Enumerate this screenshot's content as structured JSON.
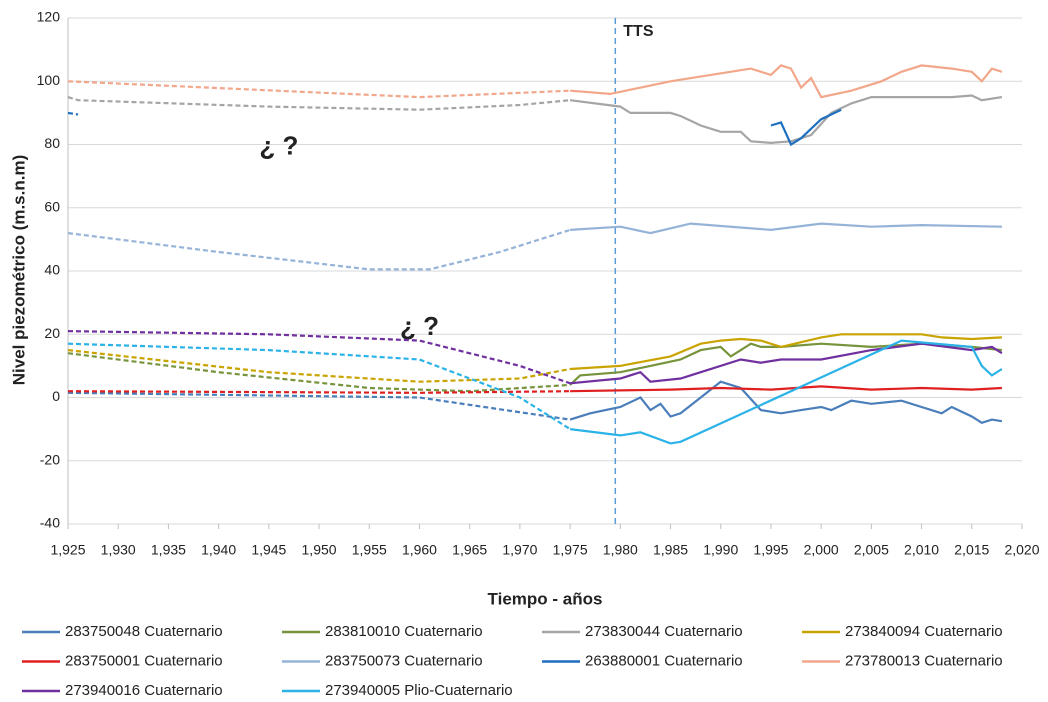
{
  "chart_data": {
    "type": "line",
    "x_label": "Tiempo - años",
    "y_label": "Nivel piezométrico (m.s.n.m)",
    "xlim": [
      1925,
      2020
    ],
    "xticks": [
      {
        "value": 1925,
        "label": "1,925"
      },
      {
        "value": 1930,
        "label": "1,930"
      },
      {
        "value": 1935,
        "label": "1,935"
      },
      {
        "value": 1940,
        "label": "1,940"
      },
      {
        "value": 1945,
        "label": "1,945"
      },
      {
        "value": 1950,
        "label": "1,950"
      },
      {
        "value": 1955,
        "label": "1,955"
      },
      {
        "value": 1960,
        "label": "1,960"
      },
      {
        "value": 1965,
        "label": "1,965"
      },
      {
        "value": 1970,
        "label": "1,970"
      },
      {
        "value": 1975,
        "label": "1,975"
      },
      {
        "value": 1980,
        "label": "1,980"
      },
      {
        "value": 1985,
        "label": "1,985"
      },
      {
        "value": 1990,
        "label": "1,990"
      },
      {
        "value": 1995,
        "label": "1,995"
      },
      {
        "value": 2000,
        "label": "2,000"
      },
      {
        "value": 2005,
        "label": "2,005"
      },
      {
        "value": 2010,
        "label": "2,010"
      },
      {
        "value": 2015,
        "label": "2,015"
      },
      {
        "value": 2020,
        "label": "2,020"
      }
    ],
    "ylim": [
      -40,
      120
    ],
    "yticks": [
      -40,
      -20,
      0,
      20,
      40,
      60,
      80,
      100,
      120
    ],
    "grid": true,
    "dashed_before": 1975,
    "vline": {
      "x": 1979.5,
      "label": "TTS",
      "color": "#5b9bd5"
    },
    "annotations": [
      {
        "text": "¿ ?",
        "x": 1946,
        "y": 79
      },
      {
        "text": "¿ ?",
        "x": 1960,
        "y": 22
      }
    ],
    "series": [
      {
        "name": "283750048 Cuaternario",
        "color": "#4a7ebb",
        "x": [
          1925,
          1960,
          1975,
          1977,
          1980,
          1982,
          1983,
          1984,
          1985,
          1986,
          1988,
          1990,
          1992,
          1994,
          1996,
          1998,
          2000,
          2001,
          2003,
          2005,
          2008,
          2010,
          2012,
          2013,
          2015,
          2016,
          2017,
          2018
        ],
        "values": [
          1.5,
          0,
          -7,
          -5,
          -3,
          0,
          -4,
          -2,
          -6,
          -5,
          0,
          5,
          3,
          -4,
          -5,
          -4,
          -3,
          -4,
          -1,
          -2,
          -1,
          -3,
          -5,
          -3,
          -6,
          -8,
          -7,
          -7.5
        ]
      },
      {
        "name": "283810010 Cuaternario",
        "color": "#77933c",
        "x": [
          1925,
          1940,
          1955,
          1965,
          1975,
          1976,
          1980,
          1983,
          1986,
          1988,
          1990,
          1991,
          1993,
          1994,
          1996,
          2000,
          2005,
          2010,
          2015,
          2018
        ],
        "values": [
          14,
          8,
          3,
          2,
          4,
          7,
          8,
          10,
          12,
          15,
          16,
          13,
          17,
          16,
          16,
          17,
          16,
          17,
          16,
          15
        ]
      },
      {
        "name": "273830044 Cuaternario",
        "color": "#a5a5a5",
        "x": [
          1925,
          1926,
          1945,
          1960,
          1970,
          1975,
          1980,
          1981,
          1985,
          1986,
          1988,
          1990,
          1992,
          1993,
          1995,
          1997,
          1999,
          2001,
          2003,
          2005,
          2010,
          2013,
          2015,
          2016,
          2018
        ],
        "values": [
          95,
          94,
          92,
          91,
          92.5,
          94,
          92,
          90,
          90,
          89,
          86,
          84,
          84,
          81,
          80.5,
          81,
          83,
          90,
          93,
          95,
          95,
          95,
          95.5,
          94,
          95
        ]
      },
      {
        "name": "273840094 Cuaternario",
        "color": "#c9a400",
        "x": [
          1925,
          1945,
          1960,
          1970,
          1975,
          1980,
          1985,
          1988,
          1990,
          1992,
          1994,
          1996,
          2000,
          2002,
          2010,
          2012,
          2015,
          2018
        ],
        "values": [
          15,
          8,
          5,
          6,
          9,
          10,
          13,
          17,
          18,
          18.5,
          18,
          16,
          19,
          20,
          20,
          19,
          18.5,
          19
        ]
      },
      {
        "name": "283750001 Cuaternario",
        "color": "#e02020",
        "x": [
          1925,
          1960,
          1975,
          1985,
          1990,
          1995,
          2000,
          2005,
          2010,
          2015,
          2018
        ],
        "values": [
          2,
          1.5,
          2,
          2.5,
          3,
          2.5,
          3.5,
          2.5,
          3,
          2.5,
          3
        ]
      },
      {
        "name": "283750073 Cuaternario",
        "color": "#95b3d7",
        "x": [
          1925,
          1940,
          1955,
          1961,
          1968,
          1975,
          1980,
          1983,
          1987,
          1995,
          2000,
          2005,
          2010,
          2018
        ],
        "values": [
          52,
          46,
          40.5,
          40.5,
          46,
          53,
          54,
          52,
          55,
          53,
          55,
          54,
          54.5,
          54
        ]
      },
      {
        "name": "263880001 Cuaternario",
        "color": "#1f6fc0",
        "x": [
          1925,
          1926,
          1960,
          1995,
          1996,
          1997,
          1998,
          2000,
          2002
        ],
        "values": [
          90,
          89.5,
          null,
          86,
          87,
          80,
          82,
          88,
          91
        ]
      },
      {
        "name": "273780013 Cuaternario",
        "color": "#f2a68a",
        "x": [
          1925,
          1960,
          1975,
          1979,
          1985,
          1993,
          1995,
          1996,
          1997,
          1998,
          1999,
          2000,
          2003,
          2006,
          2008,
          2010,
          2013,
          2015,
          2016,
          2017,
          2018
        ],
        "values": [
          100,
          95,
          97,
          96,
          100,
          104,
          102,
          105,
          104,
          98,
          101,
          95,
          97,
          100,
          103,
          105,
          104,
          103,
          100,
          104,
          103
        ]
      },
      {
        "name": "273940016 Cuaternario",
        "color": "#7030a0",
        "x": [
          1925,
          1945,
          1960,
          1970,
          1975,
          1980,
          1982,
          1983,
          1986,
          1988,
          1992,
          1994,
          1996,
          2000,
          2005,
          2010,
          2015,
          2017,
          2018
        ],
        "values": [
          21,
          20,
          18,
          10,
          4.5,
          6,
          8,
          5,
          6,
          8,
          12,
          11,
          12,
          12,
          15,
          17,
          15,
          16,
          14
        ]
      },
      {
        "name": "273940005 Plio-Cuaternario",
        "color": "#2bb3e8",
        "x": [
          1925,
          1945,
          1960,
          1970,
          1975,
          1980,
          1982,
          1985,
          1986,
          2008,
          2015,
          2016,
          2017,
          2018
        ],
        "values": [
          17,
          15,
          12,
          0,
          -10,
          -12,
          -11,
          -14.5,
          -14,
          18,
          16,
          10,
          7,
          9
        ]
      }
    ]
  }
}
